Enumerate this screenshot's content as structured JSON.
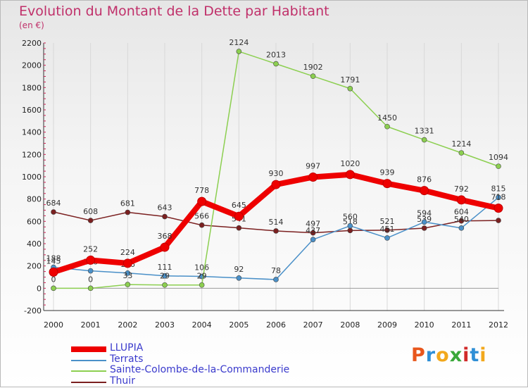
{
  "title": "Evolution du Montant de la Dette par Habitant",
  "subtitle": "(en €)",
  "logo": {
    "text": "Proxiti",
    "letter_colors": [
      "#e8561c",
      "#2f8fd6",
      "#f2a81c",
      "#3aa83a",
      "#d12a2a",
      "#2f8fd6",
      "#f2a81c"
    ]
  },
  "chart_data": {
    "type": "line",
    "x": [
      "2000",
      "2001",
      "2002",
      "2003",
      "2004",
      "2005",
      "2006",
      "2007",
      "2008",
      "2009",
      "2010",
      "2011",
      "2012"
    ],
    "ylim": [
      -200,
      2200
    ],
    "yticks": [
      "-200",
      "0",
      "200",
      "400",
      "600",
      "800",
      "1000",
      "1200",
      "1400",
      "1600",
      "1800",
      "2000",
      "2200"
    ],
    "grid": "vertical",
    "legend_position": "bottom-left",
    "series": [
      {
        "name": "Thuir",
        "color": "#7b2020",
        "values": [
          684,
          608,
          681,
          643,
          566,
          541,
          514,
          497,
          518,
          521,
          539,
          604,
          608
        ],
        "labels": [
          "684",
          "608",
          "681",
          "643",
          "566",
          "541",
          "514",
          "497",
          "518",
          "521",
          "539",
          "604",
          ""
        ]
      },
      {
        "name": "Terrats",
        "color": "#4a90c8",
        "values": [
          188,
          156,
          136,
          111,
          106,
          92,
          78,
          437,
          560,
          451,
          594,
          540,
          815
        ],
        "labels": [
          "188",
          "156",
          "136",
          "111",
          "106",
          "92",
          "78",
          "437",
          "560",
          "451",
          "594",
          "540",
          "815"
        ]
      },
      {
        "name": "Sainte-Colombe-de-la-Commanderie",
        "color": "#8ccf50",
        "values": [
          0,
          0,
          33,
          29,
          29,
          2124,
          2013,
          1902,
          1791,
          1450,
          1331,
          1214,
          1094
        ],
        "labels": [
          "0",
          "0",
          "33",
          "29",
          "29",
          "2124",
          "2013",
          "1902",
          "1791",
          "1450",
          "1331",
          "1214",
          "1094"
        ]
      },
      {
        "name": "LLUPIA",
        "color": "#ee0000",
        "values": [
          145,
          252,
          224,
          368,
          778,
          645,
          930,
          997,
          1020,
          939,
          876,
          792,
          718
        ],
        "labels": [
          "145",
          "252",
          "224",
          "368",
          "778",
          "645",
          "930",
          "997",
          "1020",
          "939",
          "876",
          "792",
          "718"
        ]
      }
    ],
    "legend": [
      "LLUPIA",
      "Terrats",
      "Sainte-Colombe-de-la-Commanderie",
      "Thuir"
    ]
  }
}
